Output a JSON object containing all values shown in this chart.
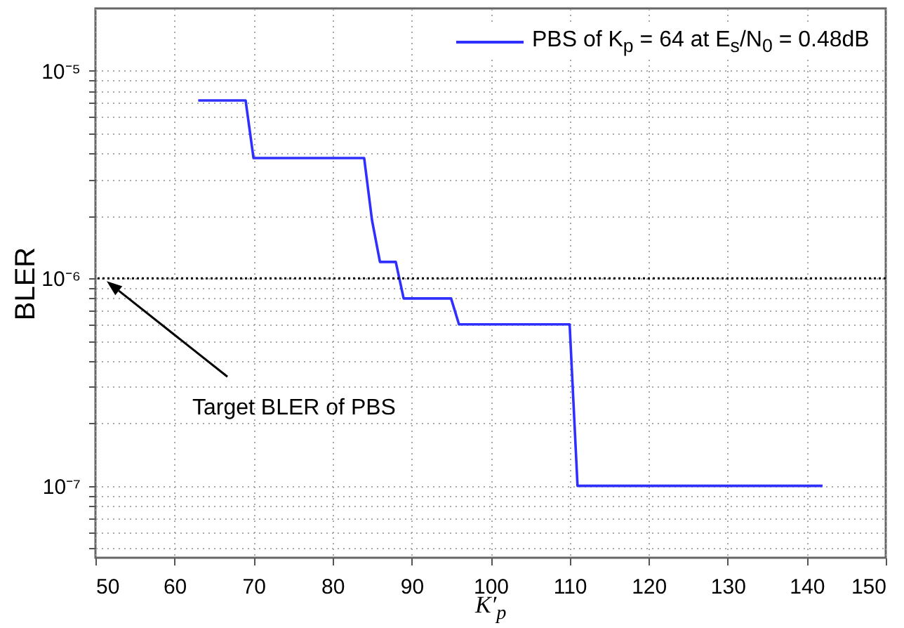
{
  "chart_data": {
    "type": "line",
    "xlabel": "K′$_{p}$",
    "ylabel": "BLER",
    "xlim": [
      50,
      150
    ],
    "xticks": [
      50,
      60,
      70,
      80,
      90,
      100,
      110,
      120,
      130,
      140,
      150
    ],
    "ylim": [
      4.5e-08,
      2e-05
    ],
    "log": "y",
    "yticks": [
      {
        "value": 5e-08,
        "label": null
      },
      {
        "value": 6e-08,
        "label": null
      },
      {
        "value": 7e-08,
        "label": null
      },
      {
        "value": 8e-08,
        "label": null
      },
      {
        "value": 9e-08,
        "label": null
      },
      {
        "value": 1e-07,
        "label": "10⁻⁷"
      },
      {
        "value": 2e-07,
        "label": null
      },
      {
        "value": 3e-07,
        "label": null
      },
      {
        "value": 4e-07,
        "label": null
      },
      {
        "value": 5e-07,
        "label": null
      },
      {
        "value": 6e-07,
        "label": null
      },
      {
        "value": 7e-07,
        "label": null
      },
      {
        "value": 8e-07,
        "label": null
      },
      {
        "value": 9e-07,
        "label": null
      },
      {
        "value": 1e-06,
        "label": "10⁻⁶"
      },
      {
        "value": 2e-06,
        "label": null
      },
      {
        "value": 3e-06,
        "label": null
      },
      {
        "value": 4e-06,
        "label": null
      },
      {
        "value": 5e-06,
        "label": null
      },
      {
        "value": 6e-06,
        "label": null
      },
      {
        "value": 7e-06,
        "label": null
      },
      {
        "value": 8e-06,
        "label": null
      },
      {
        "value": 9e-06,
        "label": null
      },
      {
        "value": 1e-05,
        "label": "10⁻⁵"
      }
    ],
    "grid": true,
    "legend": "top right",
    "marker": "none",
    "line_style": "solid",
    "x": [
      63,
      69,
      70,
      84,
      85,
      86,
      88,
      89,
      95,
      96,
      110,
      111,
      142
    ],
    "series": [
      {
        "name": "PBS of K$_{p}$ = 64 at E$_{s}$/N$_{0}$ = 0.48dB",
        "color": "#2f2fff",
        "values": [
          7.2e-06,
          7.2e-06,
          3.8e-06,
          3.8e-06,
          1.9e-06,
          1.2e-06,
          1.2e-06,
          8e-07,
          8e-07,
          6e-07,
          6e-07,
          1e-07,
          1e-07
        ]
      }
    ],
    "ref_lines": [
      {
        "axis": "y",
        "value": 1e-06,
        "label": null,
        "color": "#000000",
        "line_style": "dotted"
      }
    ],
    "annotations": [
      "Target BLER of PBS"
    ]
  }
}
